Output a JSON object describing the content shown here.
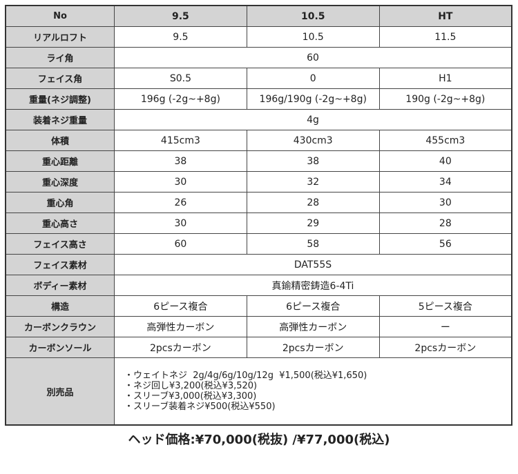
{
  "header": [
    "No",
    "9.5",
    "10.5",
    "HT"
  ],
  "rows": [
    {
      "label": "リアルロフト",
      "values": [
        "9.5",
        "10.5",
        "11.5"
      ]
    },
    {
      "label": "ライ角",
      "values": [
        "60"
      ]
    },
    {
      "label": "フェイス角",
      "values": [
        "S0.5",
        "0",
        "H1"
      ]
    },
    {
      "label": "重量(ネジ調整)",
      "values": [
        "196g (-2g~+8g)",
        "196g/190g (-2g~+8g)",
        "190g (-2g~+8g)"
      ]
    },
    {
      "label": "装着ネジ重量",
      "values": [
        "4g"
      ]
    },
    {
      "label": "体積",
      "values": [
        "415cm3",
        "430cm3",
        "455cm3"
      ]
    },
    {
      "label": "重心距離",
      "values": [
        "38",
        "38",
        "40"
      ]
    },
    {
      "label": "重心深度",
      "values": [
        "30",
        "32",
        "34"
      ]
    },
    {
      "label": "重心角",
      "values": [
        "26",
        "28",
        "30"
      ]
    },
    {
      "label": "重心高さ",
      "values": [
        "30",
        "29",
        "28"
      ]
    },
    {
      "label": "フェイス高さ",
      "values": [
        "60",
        "58",
        "56"
      ]
    },
    {
      "label": "フェイス素材",
      "values": [
        "DAT55S"
      ]
    },
    {
      "label": "ボディー素材",
      "values": [
        "真鍮精密鋳造6-4Ti"
      ]
    },
    {
      "label": "構造",
      "values": [
        "6ピース複合",
        "6ピース複合",
        "5ピース複合"
      ]
    },
    {
      "label": "カーボンクラウン",
      "values": [
        "高弾性カーボン",
        "高弾性カーボン",
        "ー"
      ]
    },
    {
      "label": "カーボンソール",
      "values": [
        "2pcsカーボン",
        "2pcsカーボン",
        "2pcsカーボン"
      ]
    }
  ],
  "accessories": {
    "label": "別売品",
    "items": [
      "・ウェイトネジ  2g/4g/6g/10g/12g  ¥1,500(税込¥1,650)",
      "・ネジ回し¥3,200(税込¥3,520)",
      "・スリーブ¥3,000(税込¥3,300)",
      "・スリーブ装着ネジ¥500(税込¥550)"
    ]
  },
  "price": "ヘッド価格:¥70,000(税抜) /¥77,000(税込)"
}
